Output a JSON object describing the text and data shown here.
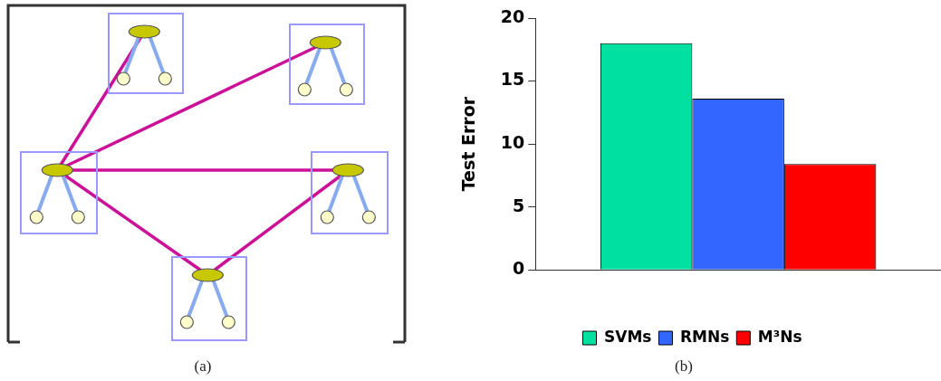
{
  "chart_data": {
    "type": "bar",
    "ylabel": "Test Error",
    "categories": [
      null
    ],
    "series": [
      {
        "name": "SVMs",
        "color": "#00e0a0",
        "values": [
          18.0
        ]
      },
      {
        "name": "RMNs",
        "color": "#3366ff",
        "values": [
          13.6
        ]
      },
      {
        "name": "M³Ns",
        "color": "#ff0000",
        "values": [
          8.4
        ]
      }
    ],
    "ylim": [
      0,
      20
    ],
    "yticks": [
      0,
      5,
      10,
      15,
      20
    ],
    "grid": false,
    "legend": "bottom",
    "annotations": [
      "(a)",
      "(b)"
    ]
  }
}
